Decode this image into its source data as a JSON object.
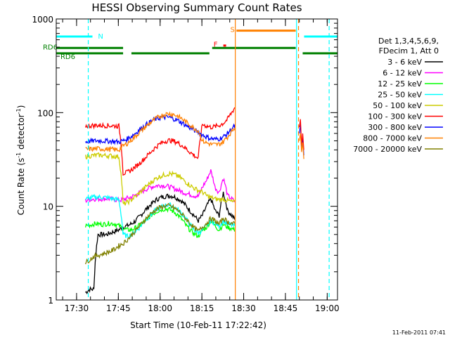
{
  "chart_data": {
    "type": "line",
    "title": "HESSI Observing Summary Count Rates",
    "xlabel": "Start Time (10-Feb-11 17:22:42)",
    "ylabel_main": "Count Rate (s",
    "ylabel_sup1": "-1",
    "ylabel_mid": " detector",
    "ylabel_sup2": "-1",
    "ylabel_end": ")",
    "yscale": "log",
    "ylim": [
      1,
      1000
    ],
    "xlim_minutes": [
      0,
      101
    ],
    "y_ticks": [
      {
        "value": 1,
        "label": "1"
      },
      {
        "value": 10,
        "label": "10"
      },
      {
        "value": 100,
        "label": "100"
      },
      {
        "value": 1000,
        "label": "1000"
      }
    ],
    "x_ticks": [
      {
        "minute": 7.3,
        "label": "17:30"
      },
      {
        "minute": 22.3,
        "label": "17:45"
      },
      {
        "minute": 37.3,
        "label": "18:00"
      },
      {
        "minute": 52.3,
        "label": "18:15"
      },
      {
        "minute": 67.3,
        "label": "18:30"
      },
      {
        "minute": 82.3,
        "label": "18:45"
      },
      {
        "minute": 97.3,
        "label": "19:00"
      }
    ],
    "legend_header": [
      "Det 1,3,4,5,6,9,",
      "FDecim 1, Att 0"
    ],
    "series": [
      {
        "name": "3 - 6 keV",
        "color": "#000000",
        "x": [
          10.5,
          12,
          13.5,
          15,
          16.5,
          18,
          19.5,
          21,
          22.5,
          24,
          25.5,
          27,
          28.5,
          30,
          31.5,
          33,
          34.5,
          36,
          37.5,
          39,
          40.5,
          42,
          43.5,
          45,
          46.5,
          48,
          49.5,
          51,
          52.5,
          54,
          55.5,
          57,
          58.5,
          60,
          61.5,
          63,
          64.5
        ],
        "y": [
          1.2,
          1.3,
          1.3,
          5,
          5,
          5,
          5.2,
          5.4,
          5.6,
          6,
          6.2,
          6.5,
          7,
          7.8,
          8.8,
          9.8,
          10.8,
          11.8,
          12.4,
          12.8,
          13,
          12.8,
          12.2,
          11.4,
          10.2,
          9,
          8,
          7,
          8,
          10,
          12,
          9,
          8,
          14,
          9,
          8,
          7
        ]
      },
      {
        "name": "6 - 12 keV",
        "color": "#ff00ff",
        "x": [
          10.5,
          12,
          13.5,
          15,
          16.5,
          18,
          19.5,
          21,
          22.5,
          24,
          25.5,
          27,
          28.5,
          30,
          31.5,
          33,
          34.5,
          36,
          37.5,
          39,
          40.5,
          42,
          43.5,
          45,
          46.5,
          48,
          49.5,
          51,
          52.5,
          54,
          55.5,
          57,
          58.5,
          60,
          61.5,
          63,
          64.5
        ],
        "y": [
          11.5,
          11.8,
          12,
          12,
          12,
          12.1,
          12,
          11.8,
          11.6,
          11.8,
          12.2,
          12.6,
          13.2,
          14,
          14.8,
          15.6,
          16.2,
          16.6,
          16.8,
          16.6,
          16.2,
          15.6,
          15,
          14.4,
          13.8,
          13.4,
          13,
          12.8,
          16,
          19,
          24,
          16,
          14,
          20,
          13,
          12,
          11
        ]
      },
      {
        "name": "12 - 25 keV",
        "color": "#00ff00",
        "x": [
          10.5,
          12,
          13.5,
          15,
          16.5,
          18,
          19.5,
          21,
          22.5,
          24,
          25.5,
          27,
          28.5,
          30,
          31.5,
          33,
          34.5,
          36,
          37.5,
          39,
          40.5,
          42,
          43.5,
          45,
          46.5,
          48,
          49.5,
          51,
          52.5,
          54,
          55.5,
          57,
          58.5,
          60,
          61.5,
          63,
          64.5
        ],
        "y": [
          6.2,
          6.3,
          6.5,
          6.5,
          6.4,
          6.5,
          6.6,
          6.5,
          6.2,
          5.8,
          5.6,
          5.6,
          5.9,
          6.3,
          6.8,
          7.5,
          8.2,
          8.8,
          9.2,
          9.4,
          9.3,
          8.8,
          8.2,
          7.3,
          6.3,
          5.6,
          5.1,
          4.8,
          5.5,
          6,
          7,
          6.2,
          5.6,
          6.4,
          6,
          5.8,
          5.6
        ]
      },
      {
        "name": "25 - 50 keV",
        "color": "#00ffff",
        "x": [
          10.5,
          12,
          13.5,
          15,
          16.5,
          18,
          19.5,
          21,
          22.5,
          24,
          25.5,
          27,
          28.5,
          30,
          31.5,
          33,
          34.5,
          36,
          37.5,
          39,
          40.5,
          42,
          43.5,
          45,
          46.5,
          48,
          49.5,
          51,
          52.5,
          54,
          55.5,
          57,
          58.5,
          60,
          61.5,
          63,
          64.5
        ],
        "y": [
          12,
          12.2,
          12.5,
          12.6,
          12.5,
          12.4,
          12.2,
          12,
          11.7,
          5,
          4.8,
          5,
          5.4,
          6,
          6.8,
          7.6,
          8.4,
          9.2,
          9.8,
          10.2,
          10.4,
          10,
          9.3,
          8.4,
          7.4,
          6.4,
          5.6,
          5.2,
          5.6,
          6.2,
          7,
          6.6,
          6.2,
          7,
          6.5,
          6.3,
          6.1
        ]
      },
      {
        "name": "50 - 100 keV",
        "color": "#cccc00",
        "x": [
          10.5,
          12,
          13.5,
          15,
          16.5,
          18,
          19.5,
          21,
          22.5,
          24,
          25.5,
          27,
          28.5,
          30,
          31.5,
          33,
          34.5,
          36,
          37.5,
          39,
          40.5,
          42,
          43.5,
          45,
          46.5,
          48,
          49.5,
          51,
          52.5,
          54,
          55.5,
          57,
          58.5,
          60,
          61.5,
          63,
          64.5
        ],
        "y": [
          34,
          34.5,
          35,
          35.2,
          35,
          34.8,
          34.6,
          34.2,
          33.8,
          10.5,
          11,
          11.8,
          12.8,
          14,
          15.5,
          17,
          18.5,
          20,
          21,
          21.8,
          22.3,
          22,
          21.2,
          19.8,
          18.2,
          16.8,
          15.6,
          14.8,
          14.2,
          13,
          12.4,
          12,
          11.8,
          12,
          11.5,
          11.2,
          11
        ]
      },
      {
        "name": "100 - 300 keV",
        "color": "#ff0000",
        "x": [
          10.5,
          12,
          13.5,
          15,
          16.5,
          18,
          19.5,
          21,
          22.5,
          24,
          25.5,
          27,
          28.5,
          30,
          31.5,
          33,
          34.5,
          36,
          37.5,
          39,
          40.5,
          42,
          43.5,
          45,
          46.5,
          48,
          49.5,
          51,
          52.5,
          54,
          55.5,
          57,
          58.5,
          60,
          61.5,
          63,
          64.5
        ],
        "y": [
          72,
          72.5,
          73,
          73.2,
          73,
          72.8,
          72.6,
          72.2,
          71.8,
          22.5,
          23,
          24.5,
          26.5,
          29,
          32,
          35.5,
          39.5,
          43.5,
          47,
          49.5,
          50.5,
          50,
          48,
          45,
          41.5,
          38,
          35,
          32.5,
          75,
          72,
          70,
          71,
          73,
          77,
          85,
          100,
          118
        ]
      },
      {
        "name": "300 - 800 keV",
        "color": "#0000ff",
        "x": [
          10.5,
          12,
          13.5,
          15,
          16.5,
          18,
          19.5,
          21,
          22.5,
          24,
          25.5,
          27,
          28.5,
          30,
          31.5,
          33,
          34.5,
          36,
          37.5,
          39,
          40.5,
          42,
          43.5,
          45,
          46.5,
          48,
          49.5,
          51,
          52.5,
          54,
          55.5,
          57,
          58.5,
          60,
          61.5,
          63,
          64.5
        ],
        "y": [
          49,
          49.5,
          50,
          50.2,
          50,
          49.8,
          49.6,
          49.2,
          48.8,
          50,
          52.5,
          56,
          60.5,
          66,
          71.5,
          77,
          82,
          86,
          88.5,
          89.5,
          89,
          86.5,
          83,
          78.5,
          73.5,
          69,
          65,
          62,
          58,
          55,
          53,
          52,
          52.5,
          55,
          60,
          67,
          74
        ]
      },
      {
        "name": "800 - 7000 keV",
        "color": "#ff8000",
        "x": [
          10.5,
          12,
          13.5,
          15,
          16.5,
          18,
          19.5,
          21,
          22.5,
          24,
          25.5,
          27,
          28.5,
          30,
          31.5,
          33,
          34.5,
          36,
          37.5,
          39,
          40.5,
          42,
          43.5,
          45,
          46.5,
          48,
          49.5,
          51,
          52.5,
          54,
          55.5,
          57,
          58.5,
          60,
          61.5,
          63,
          64.5
        ],
        "y": [
          40.5,
          40.8,
          41,
          41.2,
          41,
          40.8,
          40.6,
          40.3,
          40,
          44,
          47,
          51,
          56,
          62,
          68,
          74.5,
          81,
          87.5,
          92.5,
          96,
          97.5,
          96,
          92,
          86.5,
          80,
          74,
          68.5,
          64,
          50,
          47.5,
          46,
          45.5,
          46,
          49,
          55,
          63,
          72
        ]
      },
      {
        "name": "7000 - 20000 keV",
        "color": "#808000",
        "x": [
          10.5,
          12,
          13.5,
          15,
          16.5,
          18,
          19.5,
          21,
          22.5,
          24,
          25.5,
          27,
          28.5,
          30,
          31.5,
          33,
          34.5,
          36,
          37.5,
          39,
          40.5,
          42,
          43.5,
          45,
          46.5,
          48,
          49.5,
          51,
          52.5,
          54,
          55.5,
          57,
          58.5,
          60,
          61.5,
          63,
          64.5
        ],
        "y": [
          2.5,
          2.7,
          2.9,
          3,
          3.1,
          3.2,
          3.3,
          3.5,
          3.8,
          4,
          4.4,
          4.9,
          5.5,
          6.2,
          7,
          7.8,
          8.6,
          9.3,
          9.8,
          10.1,
          10.1,
          9.7,
          9.1,
          8.3,
          7.4,
          6.6,
          5.9,
          5.4,
          6,
          6.6,
          7.4,
          7,
          6.4,
          7.5,
          6.8,
          6.6,
          6.4
        ]
      }
    ],
    "fragments": {
      "x": [
        87.3,
        87.7,
        88.1,
        88.5,
        88.9
      ],
      "blue": [
        60,
        75,
        40,
        55,
        35
      ],
      "red": [
        70,
        85,
        45,
        60,
        40
      ],
      "orange": [
        50,
        60,
        38,
        48,
        32
      ]
    },
    "flag_lines": [
      {
        "label": "N",
        "color": "#00ffff",
        "y": 650,
        "segments": [
          [
            0,
            13
          ],
          [
            89,
            101
          ]
        ],
        "label_minute": 15,
        "label_y": 660
      },
      {
        "label": "S",
        "color": "#ff8000",
        "y": 750,
        "segments": [
          [
            64.7,
            86
          ]
        ],
        "label_minute": 62.5,
        "label_y": 780
      },
      {
        "label": "RD6",
        "color": "#008000",
        "y": 490,
        "segments": [
          [
            0,
            24
          ],
          [
            56,
            86
          ]
        ],
        "label_minute": -4.8,
        "label_y": 505
      },
      {
        "label": "RD6",
        "color": "#008000",
        "y": 430,
        "segments": [
          [
            0,
            24
          ],
          [
            27,
            55
          ],
          [
            88.5,
            101
          ]
        ],
        "label_minute": 1.5,
        "label_y": 400
      },
      {
        "label": "F",
        "color": "#ff0000",
        "y": 520,
        "segments": [
          [
            60,
            61
          ]
        ],
        "label_minute": 56.5,
        "label_y": 540
      }
    ],
    "vlines": [
      {
        "minute": 11.5,
        "color": "#00ffff",
        "dashed": true
      },
      {
        "minute": 64.3,
        "color": "#ff8000",
        "dashed": false
      },
      {
        "minute": 86.3,
        "color": "#00ffff",
        "dashed": false
      },
      {
        "minute": 87.0,
        "color": "#ff8000",
        "dashed": true
      },
      {
        "minute": 98.0,
        "color": "#00ffff",
        "dashed": true
      }
    ],
    "footer_timestamp": "11-Feb-2011 07:41"
  }
}
